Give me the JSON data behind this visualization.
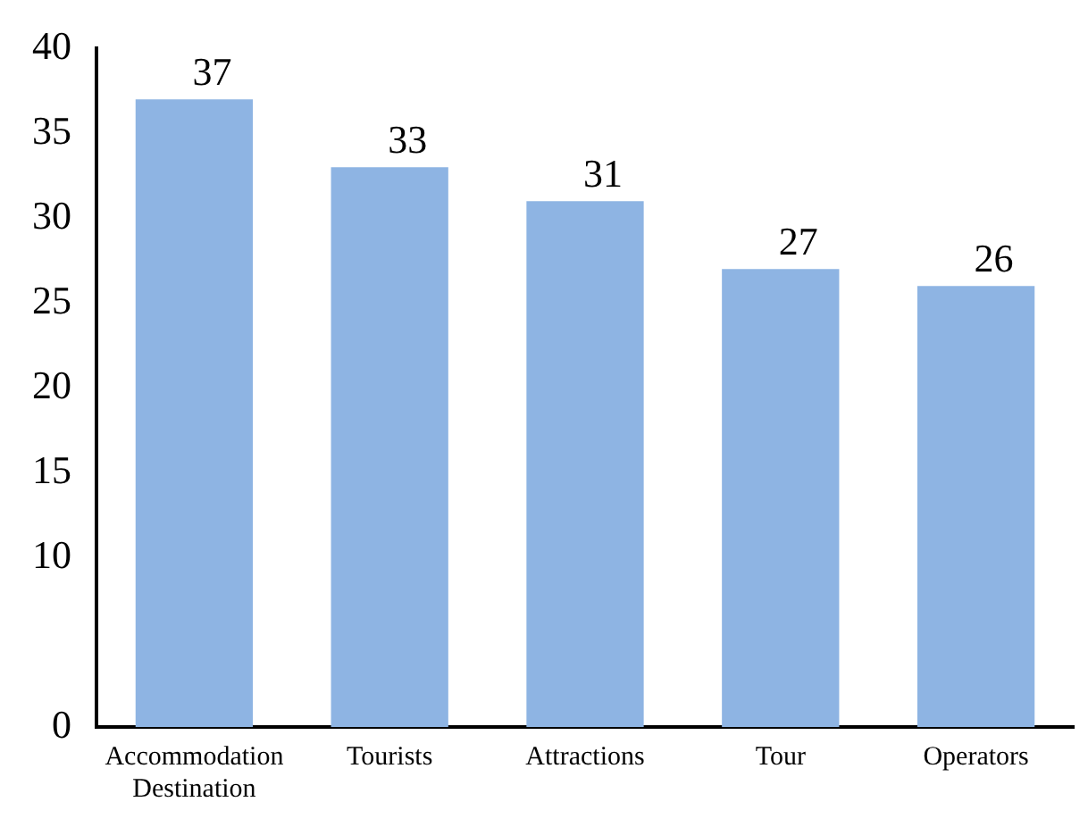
{
  "chart_data": {
    "type": "bar",
    "categories": [
      [
        "Accommodation",
        "Destination"
      ],
      "Tourists",
      "Attractions",
      "Tour",
      "Operators"
    ],
    "values": [
      37,
      33,
      31,
      27,
      26
    ],
    "color": "#8eb4e3",
    "ylim": [
      0,
      40
    ],
    "yticks": [
      0,
      10,
      15,
      20,
      25,
      30,
      35,
      40
    ],
    "grid": false,
    "data_labels": true
  }
}
